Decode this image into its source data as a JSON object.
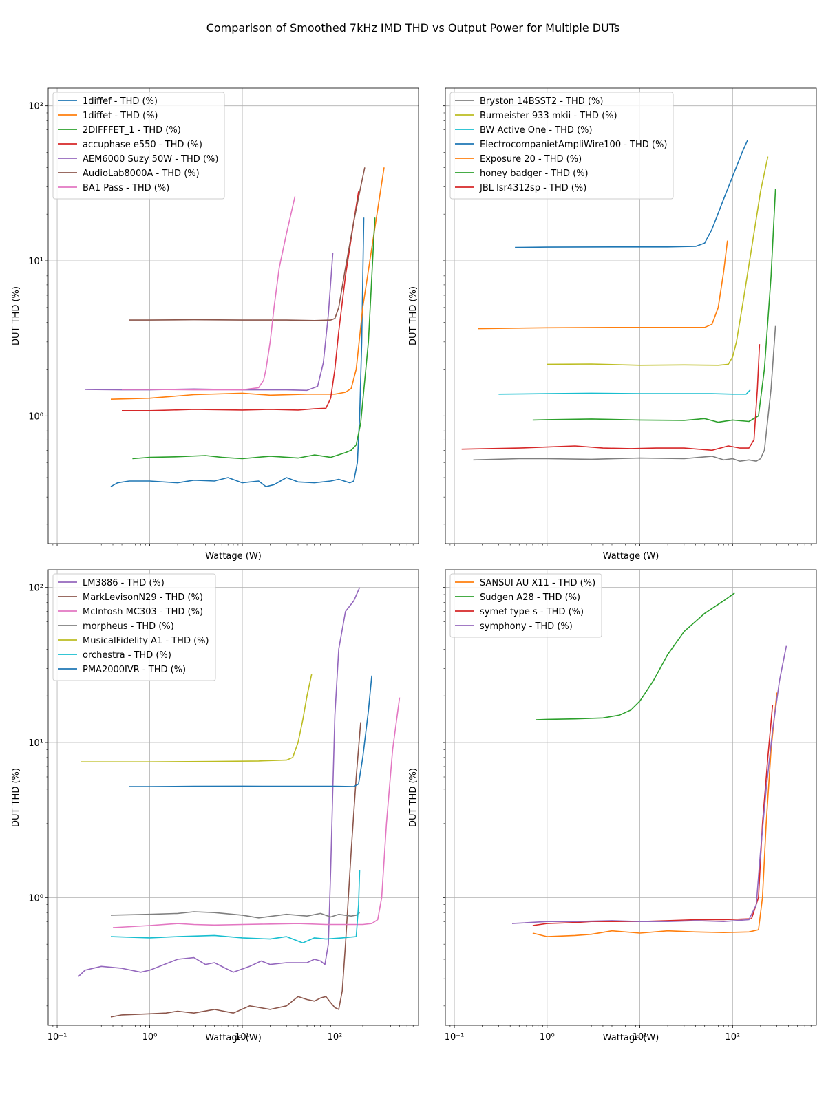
{
  "figure_title": "Comparison of Smoothed 7kHz IMD THD vs Output Power for Multiple DUTs",
  "chart_data": [
    {
      "type": "line",
      "xscale": "log",
      "yscale": "log",
      "xlim": [
        0.08,
        800
      ],
      "ylim": [
        0.15,
        130
      ],
      "xlabel": "Wattage (W)",
      "ylabel": "DUT THD (%)",
      "grid": true,
      "legend": "top-left",
      "series": [
        {
          "name": "1diffef - THD (%)",
          "color": "#1f77b4",
          "x": [
            0.38,
            0.45,
            0.6,
            1,
            2,
            3,
            5,
            7,
            10,
            15,
            18,
            22,
            30,
            40,
            60,
            90,
            110,
            145,
            160,
            175,
            185,
            195,
            205
          ],
          "y": [
            0.35,
            0.37,
            0.38,
            0.38,
            0.37,
            0.385,
            0.38,
            0.4,
            0.37,
            0.38,
            0.35,
            0.36,
            0.4,
            0.375,
            0.37,
            0.38,
            0.39,
            0.37,
            0.38,
            0.5,
            1.0,
            3.0,
            19
          ]
        },
        {
          "name": "1diffet - THD (%)",
          "color": "#ff7f0e",
          "x": [
            0.38,
            1,
            3,
            10,
            20,
            50,
            100,
            130,
            150,
            170,
            200,
            260,
            340
          ],
          "y": [
            1.28,
            1.3,
            1.37,
            1.4,
            1.36,
            1.38,
            1.38,
            1.42,
            1.5,
            2.0,
            5.0,
            14,
            40
          ]
        },
        {
          "name": "2DIFFFET_1 - THD (%)",
          "color": "#2ca02c",
          "x": [
            0.65,
            1,
            2,
            4,
            6,
            10,
            20,
            40,
            60,
            90,
            130,
            150,
            170,
            190,
            230,
            270
          ],
          "y": [
            0.53,
            0.54,
            0.545,
            0.555,
            0.54,
            0.53,
            0.55,
            0.535,
            0.56,
            0.54,
            0.58,
            0.6,
            0.65,
            0.9,
            3.0,
            19
          ]
        },
        {
          "name": "accuphase e550 - THD (%)",
          "color": "#d62728",
          "x": [
            0.5,
            1,
            3,
            10,
            20,
            40,
            60,
            80,
            90,
            100,
            110,
            130,
            160,
            180
          ],
          "y": [
            1.08,
            1.08,
            1.1,
            1.09,
            1.1,
            1.09,
            1.11,
            1.12,
            1.3,
            2.0,
            3.5,
            8,
            18,
            28
          ]
        },
        {
          "name": "AEM6000 Suzy 50W - THD (%)",
          "color": "#9467bd",
          "x": [
            0.2,
            0.5,
            1,
            3,
            10,
            30,
            50,
            65,
            75,
            85,
            95
          ],
          "y": [
            1.48,
            1.47,
            1.47,
            1.49,
            1.47,
            1.47,
            1.46,
            1.55,
            2.2,
            4.5,
            11.2
          ]
        },
        {
          "name": "AudioLab8000A - THD (%)",
          "color": "#8c564b",
          "x": [
            0.6,
            1,
            3,
            10,
            30,
            60,
            90,
            100,
            110,
            130,
            160,
            190,
            210
          ],
          "y": [
            4.15,
            4.15,
            4.17,
            4.15,
            4.15,
            4.12,
            4.15,
            4.25,
            5.0,
            9,
            18,
            30,
            40
          ]
        },
        {
          "name": "BA1 Pass - THD (%)",
          "color": "#e377c2",
          "x": [
            0.5,
            1,
            3,
            10,
            15,
            17,
            18,
            20,
            22,
            25,
            30,
            37
          ],
          "y": [
            1.48,
            1.48,
            1.47,
            1.47,
            1.52,
            1.7,
            2.0,
            3.0,
            5.0,
            9.0,
            15,
            26
          ]
        }
      ]
    },
    {
      "type": "line",
      "xscale": "log",
      "yscale": "log",
      "xlim": [
        0.08,
        800
      ],
      "ylim": [
        0.15,
        130
      ],
      "xlabel": "Wattage (W)",
      "ylabel": "DUT THD (%)",
      "grid": true,
      "legend": "top-left",
      "series": [
        {
          "name": "Bryston 14BSST2 - THD (%)",
          "color": "#7f7f7f",
          "x": [
            0.16,
            0.5,
            1,
            3,
            10,
            30,
            60,
            80,
            100,
            120,
            150,
            180,
            200,
            220,
            260,
            290
          ],
          "y": [
            0.52,
            0.53,
            0.53,
            0.525,
            0.535,
            0.53,
            0.55,
            0.52,
            0.53,
            0.51,
            0.52,
            0.51,
            0.53,
            0.6,
            1.5,
            3.8
          ]
        },
        {
          "name": "Burmeister 933 mkii - THD (%)",
          "color": "#bcbd22",
          "x": [
            1,
            3,
            10,
            30,
            70,
            90,
            100,
            110,
            130,
            160,
            200,
            240
          ],
          "y": [
            2.15,
            2.16,
            2.12,
            2.13,
            2.12,
            2.15,
            2.4,
            3.0,
            5.5,
            12,
            28,
            47
          ]
        },
        {
          "name": "BW Active One - THD (%)",
          "color": "#17becf",
          "x": [
            0.3,
            1,
            3,
            10,
            30,
            60,
            100,
            140,
            155
          ],
          "y": [
            1.38,
            1.39,
            1.4,
            1.39,
            1.39,
            1.39,
            1.38,
            1.38,
            1.47
          ]
        },
        {
          "name": "ElectrocompanietAmpliWire100 - THD (%)",
          "color": "#1f77b4",
          "x": [
            0.45,
            1,
            5,
            20,
            40,
            50,
            60,
            80,
            100,
            130,
            145
          ],
          "y": [
            12.2,
            12.25,
            12.3,
            12.3,
            12.4,
            13.0,
            16,
            25,
            35,
            52,
            60
          ]
        },
        {
          "name": "Exposure 20 - THD (%)",
          "color": "#ff7f0e",
          "x": [
            0.18,
            1,
            5,
            20,
            50,
            60,
            70,
            80,
            88
          ],
          "y": [
            3.65,
            3.7,
            3.72,
            3.72,
            3.72,
            3.9,
            5.0,
            8.5,
            13.5
          ]
        },
        {
          "name": "honey badger - THD (%)",
          "color": "#2ca02c",
          "x": [
            0.7,
            1,
            3,
            10,
            30,
            50,
            70,
            100,
            150,
            190,
            220,
            260,
            290
          ],
          "y": [
            0.94,
            0.945,
            0.955,
            0.94,
            0.935,
            0.96,
            0.91,
            0.94,
            0.92,
            1.0,
            2.0,
            8.0,
            29
          ]
        },
        {
          "name": "JBL lsr4312sp - THD (%)",
          "color": "#d62728",
          "x": [
            0.12,
            0.5,
            1,
            2,
            4,
            8,
            15,
            30,
            60,
            90,
            120,
            150,
            170,
            185,
            195
          ],
          "y": [
            0.61,
            0.62,
            0.63,
            0.64,
            0.62,
            0.615,
            0.62,
            0.62,
            0.6,
            0.64,
            0.62,
            0.62,
            0.7,
            1.5,
            2.9
          ]
        }
      ]
    },
    {
      "type": "line",
      "xscale": "log",
      "yscale": "log",
      "xlim": [
        0.08,
        800
      ],
      "ylim": [
        0.15,
        130
      ],
      "xlabel": "Wattage (W)",
      "ylabel": "DUT THD (%)",
      "grid": true,
      "legend": "top-left",
      "series": [
        {
          "name": "LM3886 - THD (%)",
          "color": "#9467bd",
          "x": [
            0.17,
            0.2,
            0.3,
            0.5,
            0.8,
            1,
            2,
            3,
            4,
            5,
            8,
            12,
            16,
            20,
            30,
            50,
            60,
            70,
            78,
            85,
            90,
            95,
            100,
            110,
            130,
            160,
            185
          ],
          "y": [
            0.31,
            0.34,
            0.36,
            0.35,
            0.33,
            0.34,
            0.4,
            0.41,
            0.37,
            0.38,
            0.33,
            0.36,
            0.39,
            0.37,
            0.38,
            0.38,
            0.4,
            0.39,
            0.37,
            0.5,
            1.5,
            5.0,
            15,
            40,
            70,
            82,
            100
          ]
        },
        {
          "name": "MarkLevisonN29 - THD (%)",
          "color": "#8c564b",
          "x": [
            0.38,
            0.5,
            1,
            1.5,
            2,
            3,
            5,
            8,
            12,
            20,
            30,
            40,
            50,
            60,
            70,
            80,
            90,
            100,
            110,
            120,
            130,
            150,
            170,
            190
          ],
          "y": [
            0.17,
            0.175,
            0.178,
            0.18,
            0.185,
            0.18,
            0.19,
            0.18,
            0.2,
            0.19,
            0.2,
            0.23,
            0.22,
            0.215,
            0.225,
            0.23,
            0.21,
            0.195,
            0.19,
            0.25,
            0.5,
            2.0,
            6.0,
            13.5
          ]
        },
        {
          "name": "McIntosh MC303 - THD (%)",
          "color": "#e377c2",
          "x": [
            0.4,
            1,
            2,
            3,
            5,
            10,
            20,
            40,
            80,
            150,
            200,
            250,
            290,
            320,
            360,
            420,
            500
          ],
          "y": [
            0.64,
            0.66,
            0.68,
            0.67,
            0.665,
            0.67,
            0.675,
            0.68,
            0.67,
            0.67,
            0.67,
            0.68,
            0.72,
            1.0,
            3.0,
            9.0,
            19.5
          ]
        },
        {
          "name": "morpheus - THD (%)",
          "color": "#7f7f7f",
          "x": [
            0.38,
            1,
            2,
            3,
            5,
            10,
            15,
            30,
            50,
            70,
            90,
            110,
            150,
            170,
            185
          ],
          "y": [
            0.77,
            0.78,
            0.79,
            0.81,
            0.8,
            0.77,
            0.74,
            0.78,
            0.76,
            0.79,
            0.75,
            0.78,
            0.76,
            0.77,
            0.8
          ]
        },
        {
          "name": "MusicalFidelity A1 - THD (%)",
          "color": "#bcbd22",
          "x": [
            0.18,
            1,
            5,
            15,
            30,
            35,
            40,
            45,
            50,
            56
          ],
          "y": [
            7.5,
            7.5,
            7.55,
            7.6,
            7.7,
            8.0,
            10,
            14,
            20,
            27.5
          ]
        },
        {
          "name": "orchestra - THD (%)",
          "color": "#17becf",
          "x": [
            0.38,
            1,
            2,
            5,
            10,
            20,
            30,
            45,
            60,
            80,
            120,
            170,
            180,
            185
          ],
          "y": [
            0.56,
            0.55,
            0.56,
            0.57,
            0.55,
            0.54,
            0.56,
            0.51,
            0.55,
            0.54,
            0.55,
            0.56,
            0.9,
            1.5
          ]
        },
        {
          "name": "PMA2000IVR - THD (%)",
          "color": "#1f77b4",
          "x": [
            0.6,
            1,
            3,
            10,
            30,
            100,
            160,
            180,
            200,
            230,
            250
          ],
          "y": [
            5.2,
            5.2,
            5.22,
            5.23,
            5.22,
            5.22,
            5.2,
            5.4,
            8.0,
            16,
            27
          ]
        }
      ]
    },
    {
      "type": "line",
      "xscale": "log",
      "yscale": "log",
      "xlim": [
        0.08,
        800
      ],
      "ylim": [
        0.15,
        130
      ],
      "xlabel": "Wattage (W)",
      "ylabel": "DUT THD (%)",
      "grid": true,
      "legend": "top-left",
      "series": [
        {
          "name": "SANSUI AU X11 - THD (%)",
          "color": "#ff7f0e",
          "x": [
            0.7,
            1,
            2,
            3,
            5,
            10,
            20,
            40,
            80,
            150,
            190,
            210,
            230,
            260,
            300
          ],
          "y": [
            0.59,
            0.56,
            0.57,
            0.58,
            0.61,
            0.59,
            0.61,
            0.6,
            0.595,
            0.6,
            0.62,
            1.0,
            3.0,
            9.0,
            21
          ]
        },
        {
          "name": "Sudgen A28 - THD (%)",
          "color": "#2ca02c",
          "x": [
            0.75,
            1,
            2,
            4,
            6,
            8,
            10,
            14,
            20,
            30,
            50,
            80,
            105
          ],
          "y": [
            14.0,
            14.1,
            14.2,
            14.4,
            15.0,
            16.2,
            18.5,
            25,
            37,
            52,
            68,
            82,
            92
          ]
        },
        {
          "name": "symef type s - THD (%)",
          "color": "#d62728",
          "x": [
            0.7,
            1,
            2,
            3,
            5,
            10,
            20,
            40,
            80,
            160,
            190,
            210,
            240,
            270
          ],
          "y": [
            0.66,
            0.68,
            0.69,
            0.7,
            0.7,
            0.7,
            0.71,
            0.72,
            0.72,
            0.73,
            1.0,
            3.0,
            8.0,
            17.5
          ]
        },
        {
          "name": "symphony - THD (%)",
          "color": "#9467bd",
          "x": [
            0.42,
            1,
            2,
            5,
            10,
            20,
            40,
            80,
            150,
            180,
            200,
            230,
            270,
            320,
            380
          ],
          "y": [
            0.68,
            0.7,
            0.7,
            0.71,
            0.7,
            0.7,
            0.71,
            0.7,
            0.72,
            0.9,
            2.0,
            5.0,
            12,
            25,
            42
          ]
        }
      ]
    }
  ]
}
